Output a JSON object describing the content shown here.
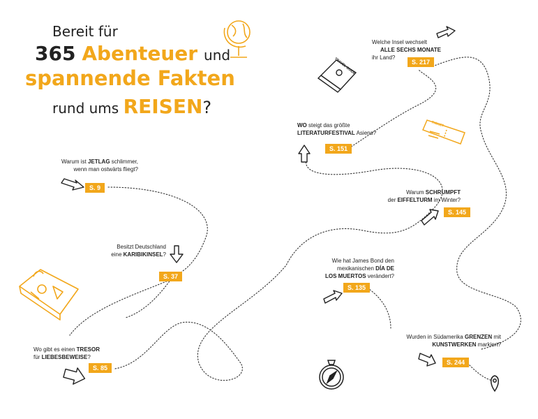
{
  "title": {
    "line1": "Bereit für",
    "count": "365",
    "word_abenteuer": "Abenteuer",
    "und": "und",
    "line3": "spannende Fakten",
    "rund": "rund ums",
    "reisen": "REISEN",
    "qmark": "?"
  },
  "questions": [
    {
      "pre": "Warum ist ",
      "hl": "JETLAG",
      "post": " schlimmer,",
      "line2": "wenn man ostwärts fliegt?",
      "page": "S. 9"
    },
    {
      "pre": "Besitzt Deutschland",
      "line2pre": "eine ",
      "hl": "KARIBIKINSEL",
      "post": "?",
      "page": "S. 37"
    },
    {
      "pre": "Wo gibt es einen ",
      "hl": "TRESOR",
      "line2pre": "für ",
      "hl2": "LIEBESBEWEISE",
      "post": "?",
      "page": "S. 85"
    },
    {
      "hl": "WO",
      "post": " steigt das größte",
      "hl2": "LITERATURFESTIVAL",
      "post2": " Asiens?",
      "page": "S. 151"
    },
    {
      "pre": "Welche Insel wechselt",
      "hl": "ALLE SECHS MONATE",
      "line3": "ihr Land?",
      "page": "S. 217"
    },
    {
      "pre": "Warum ",
      "hl": "SCHRUMPFT",
      "line2pre": "der ",
      "hl2": "EIFFELTURM",
      "post": " im Winter?",
      "page": "S. 145"
    },
    {
      "pre": "Wie hat James Bond den",
      "line2pre": "mexikanischen ",
      "hl": "DÍA DE",
      "hl2": "LOS MUERTOS",
      "post": " verändert?",
      "page": "S. 135"
    },
    {
      "pre": "Wurden in Südamerika ",
      "hl": "GRENZEN",
      "post": " mit",
      "hl2": "KUNSTWERKEN",
      "post2": " markiert?",
      "page": "S. 244"
    }
  ],
  "guide_text": "TRAVEL GUIDE",
  "ticket_text": "TICKET",
  "colors": {
    "accent": "#f2a71b",
    "ink": "#222222"
  }
}
